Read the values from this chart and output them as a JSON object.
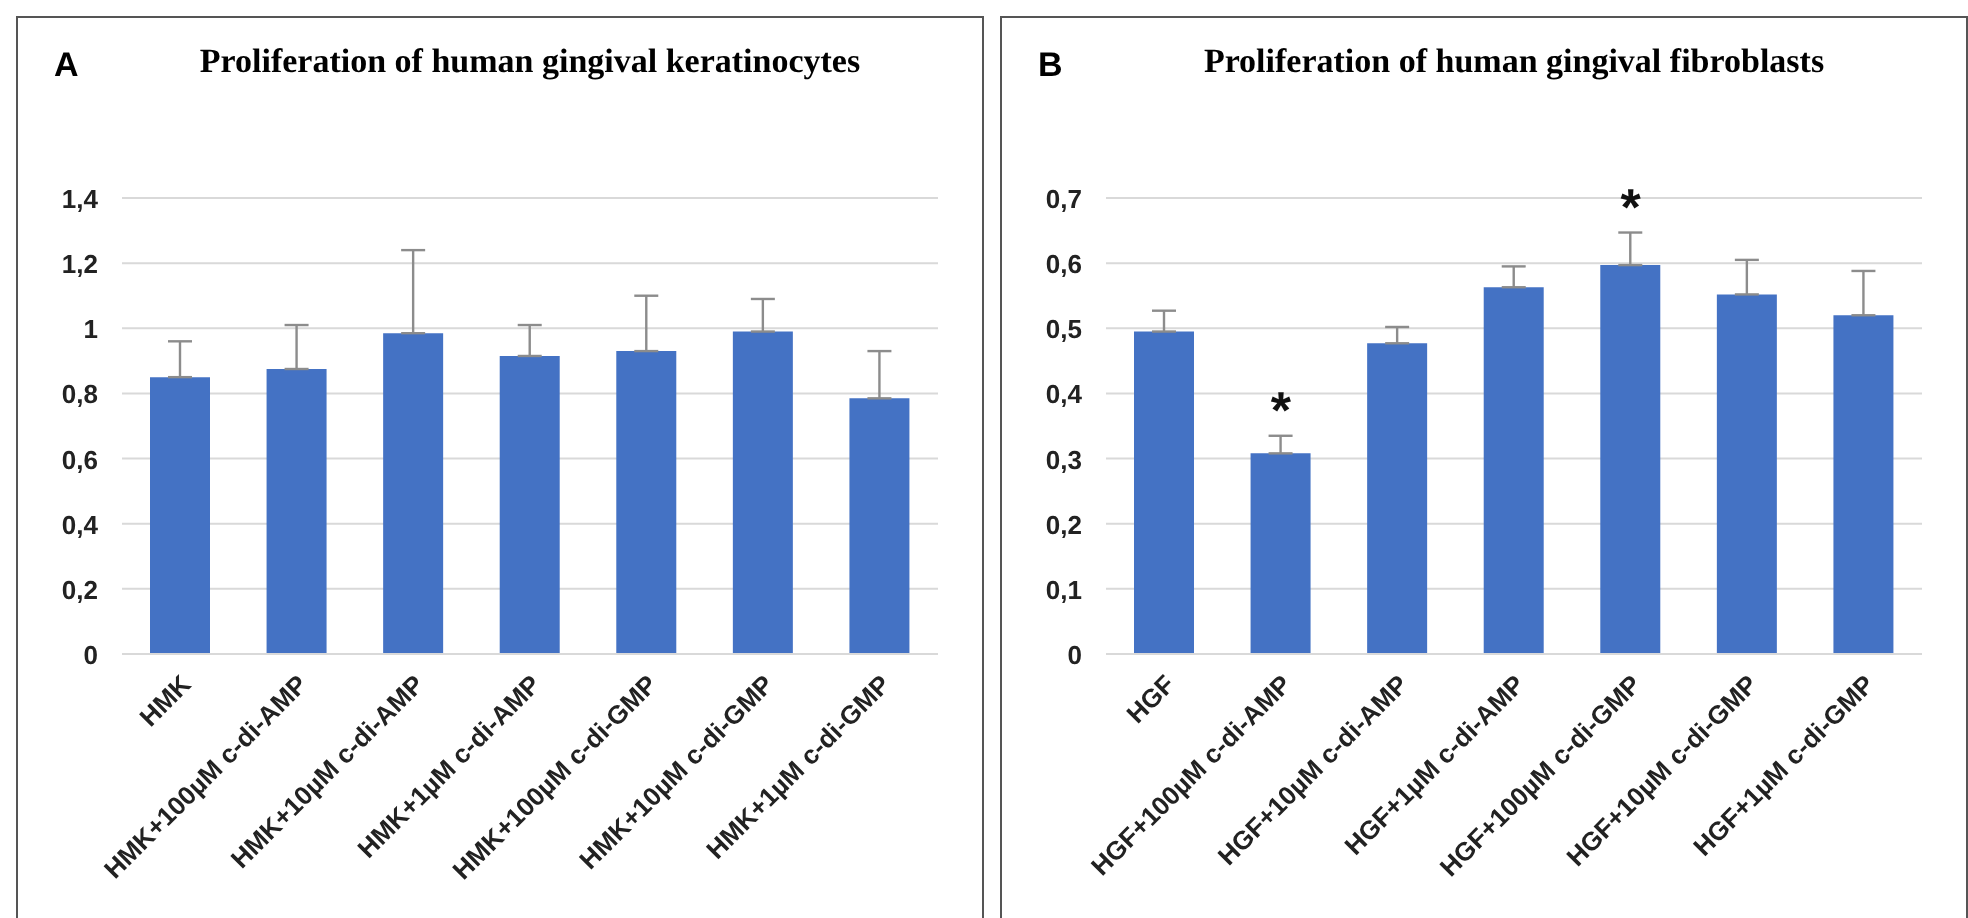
{
  "chart_data": [
    {
      "type": "bar",
      "title": "Proliferation of human gingival keratinocytes",
      "annotations": [
        "A"
      ],
      "categories": [
        "HMK",
        "HMK+100µM c-di-AMP",
        "HMK+10µM c-di-AMP",
        "HMK+1µM c-di-AMP",
        "HMK+100µM c-di-GMP",
        "HMK+10µM c-di-GMP",
        "HMK+1µM c-di-GMP"
      ],
      "values": [
        0.85,
        0.875,
        0.985,
        0.915,
        0.93,
        0.99,
        0.785
      ],
      "color": "#4472c4",
      "errors": [
        [
          0.85,
          0.96
        ],
        [
          0.875,
          1.01
        ],
        [
          0.985,
          1.24
        ],
        [
          0.915,
          1.01
        ],
        [
          0.93,
          1.1
        ],
        [
          0.99,
          1.09
        ],
        [
          0.785,
          0.93
        ]
      ],
      "ylim": [
        0,
        1.4
      ],
      "yticks": [
        {
          "value": 0,
          "label": "0"
        },
        {
          "value": 0.2,
          "label": "0,2"
        },
        {
          "value": 0.4,
          "label": "0,4"
        },
        {
          "value": 0.6,
          "label": "0,6"
        },
        {
          "value": 0.8,
          "label": "0,8"
        },
        {
          "value": 1,
          "label": "1"
        },
        {
          "value": 1.2,
          "label": "1,2"
        },
        {
          "value": 1.4,
          "label": "1,4"
        }
      ],
      "grid": "y"
    },
    {
      "type": "bar",
      "title": "Proliferation of human gingival fibroblasts",
      "annotations": [
        "B",
        {
          "text": "*",
          "x": "HGF+100µM c-di-AMP",
          "y": 0.308
        },
        {
          "text": "*",
          "x": "HGF+100µM c-di-GMP",
          "y": 0.597
        }
      ],
      "categories": [
        "HGF",
        "HGF+100µM c-di-AMP",
        "HGF+10µM c-di-AMP",
        "HGF+1µM c-di-AMP",
        "HGF+100µM c-di-GMP",
        "HGF+10µM c-di-GMP",
        "HGF+1µM c-di-GMP"
      ],
      "values": [
        0.495,
        0.308,
        0.477,
        0.563,
        0.597,
        0.552,
        0.52
      ],
      "color": "#4472c4",
      "errors": [
        [
          0.495,
          0.527
        ],
        [
          0.308,
          0.335
        ],
        [
          0.477,
          0.502
        ],
        [
          0.563,
          0.595
        ],
        [
          0.597,
          0.647
        ],
        [
          0.552,
          0.605
        ],
        [
          0.52,
          0.588
        ]
      ],
      "ylim": [
        0,
        0.7
      ],
      "yticks": [
        {
          "value": 0,
          "label": "0"
        },
        {
          "value": 0.1,
          "label": "0,1"
        },
        {
          "value": 0.2,
          "label": "0,2"
        },
        {
          "value": 0.3,
          "label": "0,3"
        },
        {
          "value": 0.4,
          "label": "0,4"
        },
        {
          "value": 0.5,
          "label": "0,5"
        },
        {
          "value": 0.6,
          "label": "0,6"
        },
        {
          "value": 0.7,
          "label": "0,7"
        }
      ],
      "grid": "y"
    }
  ]
}
